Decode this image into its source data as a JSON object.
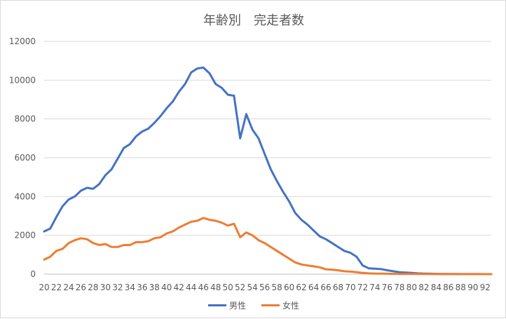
{
  "chart_data": {
    "type": "line",
    "title": "年齢別　完走者数",
    "xlabel": "",
    "ylabel": "",
    "ylim": [
      0,
      12000
    ],
    "yticks": [
      0,
      2000,
      4000,
      6000,
      8000,
      10000,
      12000
    ],
    "ytick_labels": [
      "0",
      "2000",
      "4000",
      "6000",
      "8000",
      "10000",
      "12000"
    ],
    "xtick_labels": [
      "20",
      "22",
      "24",
      "26",
      "28",
      "30",
      "32",
      "34",
      "36",
      "38",
      "40",
      "42",
      "44",
      "46",
      "48",
      "50",
      "52",
      "54",
      "56",
      "58",
      "60",
      "62",
      "64",
      "66",
      "68",
      "70",
      "72",
      "74",
      "76",
      "78",
      "80",
      "82",
      "84",
      "86",
      "88",
      "90",
      "92"
    ],
    "x": [
      20,
      21,
      22,
      23,
      24,
      25,
      26,
      27,
      28,
      29,
      30,
      31,
      32,
      33,
      34,
      35,
      36,
      37,
      38,
      39,
      40,
      41,
      42,
      43,
      44,
      45,
      46,
      47,
      48,
      49,
      50,
      51,
      52,
      53,
      54,
      55,
      56,
      57,
      58,
      59,
      60,
      61,
      62,
      63,
      64,
      65,
      66,
      67,
      68,
      69,
      70,
      71,
      72,
      73,
      74,
      75,
      76,
      77,
      78,
      79,
      80,
      81,
      82,
      83,
      84,
      85,
      86,
      87,
      88,
      89,
      90,
      91,
      92,
      93
    ],
    "grid": true,
    "legend_position": "bottom",
    "series": [
      {
        "name": "男性",
        "color": "#4472C4",
        "values": [
          2200,
          2350,
          2950,
          3500,
          3850,
          4000,
          4300,
          4450,
          4400,
          4650,
          5100,
          5400,
          5950,
          6500,
          6700,
          7100,
          7350,
          7500,
          7800,
          8150,
          8550,
          8900,
          9400,
          9800,
          10400,
          10600,
          10650,
          10350,
          9800,
          9600,
          9250,
          9200,
          7000,
          8250,
          7450,
          7000,
          6200,
          5400,
          4800,
          4250,
          3750,
          3150,
          2800,
          2550,
          2250,
          1950,
          1800,
          1600,
          1400,
          1200,
          1100,
          900,
          450,
          300,
          280,
          260,
          200,
          150,
          100,
          80,
          60,
          40,
          30,
          20,
          15,
          10,
          8,
          6,
          5,
          4,
          3,
          2,
          1,
          0
        ]
      },
      {
        "name": "女性",
        "color": "#ED7D31",
        "values": [
          750,
          900,
          1200,
          1300,
          1600,
          1750,
          1850,
          1800,
          1600,
          1500,
          1550,
          1400,
          1400,
          1500,
          1500,
          1650,
          1650,
          1700,
          1850,
          1900,
          2100,
          2200,
          2400,
          2550,
          2700,
          2750,
          2900,
          2800,
          2750,
          2650,
          2500,
          2600,
          1900,
          2150,
          2000,
          1750,
          1600,
          1400,
          1200,
          1000,
          800,
          600,
          500,
          450,
          400,
          350,
          250,
          230,
          200,
          150,
          130,
          100,
          60,
          40,
          30,
          25,
          20,
          15,
          12,
          10,
          8,
          6,
          5,
          4,
          3,
          2,
          1,
          1,
          0,
          0,
          0,
          0,
          0,
          0
        ]
      }
    ]
  }
}
